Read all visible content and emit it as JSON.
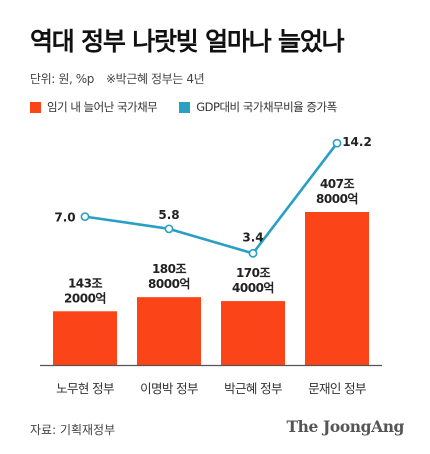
{
  "title": "역대 정부 나랏빚 얼마나 늘었나",
  "unit": "단위: 원, %p",
  "note": "※박근혜 정부는 4년",
  "source": "자료: 기획재정부",
  "logo": "The JoongAng",
  "colors": {
    "bar": "#fb4418",
    "line": "#2a9fc4",
    "axis": "#555555"
  },
  "chart_data": {
    "type": "bar",
    "categories": [
      "노무현 정부",
      "이명박 정부",
      "박근혜 정부",
      "문재인 정부"
    ],
    "series": [
      {
        "name": "임기 내 늘어난 국가채무",
        "type": "bar",
        "values": [
          1432000,
          1808000,
          1704000,
          4078000
        ],
        "labels": [
          [
            "143조",
            "2000억"
          ],
          [
            "180조",
            "8000억"
          ],
          [
            "170조",
            "4000억"
          ],
          [
            "407조",
            "8000억"
          ]
        ]
      },
      {
        "name": "GDP대비 국가채무비율 증가폭",
        "type": "line",
        "values": [
          7.0,
          5.8,
          3.4,
          14.2
        ],
        "labels": [
          "7.0",
          "5.8",
          "3.4",
          "14.2"
        ]
      }
    ]
  }
}
